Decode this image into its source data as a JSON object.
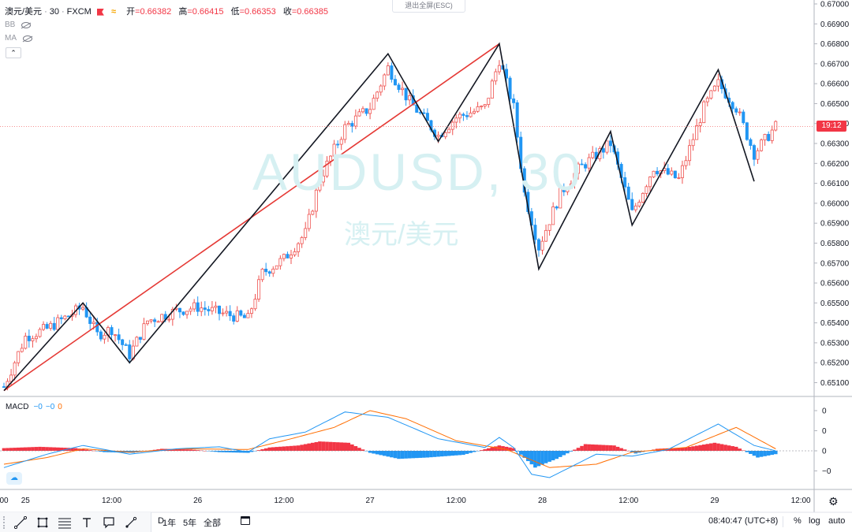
{
  "header": {
    "symbol": "澳元/美元",
    "interval": "30",
    "exchange": "FXCM",
    "ohlc": [
      {
        "label": "开",
        "value": "=0.66382"
      },
      {
        "label": "高",
        "value": "=0.66415"
      },
      {
        "label": "低",
        "value": "=0.66353"
      },
      {
        "label": "收",
        "value": "=0.66385"
      }
    ],
    "indicators": [
      "BB",
      "MA"
    ],
    "exit_fullscreen": "退出全屏(ESC)"
  },
  "watermark": {
    "ticker": "AUDUSD, 30",
    "name": "澳元/美元"
  },
  "price_tag": "19:12",
  "macd_legend": {
    "name": "MACD",
    "v1": "−0",
    "v2": "−0",
    "v3": "0"
  },
  "bottom_bar": {
    "ranges": [
      "D",
      "1年",
      "5年",
      "全部"
    ],
    "time": "08:40:47 (UTC+8)",
    "percent": "%",
    "log": "log",
    "auto": "auto"
  },
  "colors": {
    "up": "#ef5350",
    "down": "#2196f3",
    "macd_line": "#2196f3",
    "signal_line": "#ff6d00",
    "hist_pos": "#f23645",
    "hist_neg": "#2196f3",
    "zigzag": "#131722",
    "trend": "#e53935",
    "watermark": "#d6f0f2"
  },
  "chart_data": [
    {
      "type": "candlestick",
      "title": "澳元/美元 · 30 · FXCM",
      "ylim": [
        0.6505,
        0.67
      ],
      "y_ticks": [
        "0.67000",
        "0.66900",
        "0.66800",
        "0.66700",
        "0.66600",
        "0.66500",
        "0.66400",
        "0.66300",
        "0.66200",
        "0.66100",
        "0.66000",
        "0.65900",
        "0.65800",
        "0.65700",
        "0.65600",
        "0.65500",
        "0.65400",
        "0.65300",
        "0.65200",
        "0.65100"
      ],
      "x_ticks": [
        {
          "label": "00",
          "x": 0
        },
        {
          "label": "25",
          "x": 6
        },
        {
          "label": "12:00",
          "x": 30
        },
        {
          "label": "26",
          "x": 54
        },
        {
          "label": "12:00",
          "x": 78
        },
        {
          "label": "27",
          "x": 102
        },
        {
          "label": "12:00",
          "x": 126
        },
        {
          "label": "28",
          "x": 150
        },
        {
          "label": "12:00",
          "x": 174
        },
        {
          "label": "29",
          "x": 198
        },
        {
          "label": "12:00",
          "x": 222
        }
      ],
      "zigzag": [
        {
          "x": 0,
          "y": 0.6506
        },
        {
          "x": 22,
          "y": 0.655
        },
        {
          "x": 35,
          "y": 0.652
        },
        {
          "x": 107,
          "y": 0.6675
        },
        {
          "x": 121,
          "y": 0.6631
        },
        {
          "x": 138,
          "y": 0.668
        },
        {
          "x": 149,
          "y": 0.6567
        },
        {
          "x": 169,
          "y": 0.6636
        },
        {
          "x": 175,
          "y": 0.6589
        },
        {
          "x": 199,
          "y": 0.6667
        },
        {
          "x": 209,
          "y": 0.6611
        }
      ],
      "trendline": [
        {
          "x": 0,
          "y": 0.6506
        },
        {
          "x": 138,
          "y": 0.668
        }
      ],
      "last_close": 0.66385,
      "ohlc_path": [
        {
          "x": 0,
          "y": 0.6508
        },
        {
          "x": 6,
          "y": 0.6533
        },
        {
          "x": 12,
          "y": 0.6537
        },
        {
          "x": 22,
          "y": 0.6548
        },
        {
          "x": 26,
          "y": 0.6534
        },
        {
          "x": 30,
          "y": 0.6537
        },
        {
          "x": 35,
          "y": 0.6524
        },
        {
          "x": 40,
          "y": 0.6541
        },
        {
          "x": 48,
          "y": 0.6546
        },
        {
          "x": 54,
          "y": 0.6548
        },
        {
          "x": 60,
          "y": 0.6545
        },
        {
          "x": 68,
          "y": 0.6542
        },
        {
          "x": 72,
          "y": 0.6565
        },
        {
          "x": 78,
          "y": 0.6572
        },
        {
          "x": 84,
          "y": 0.6585
        },
        {
          "x": 88,
          "y": 0.6612
        },
        {
          "x": 95,
          "y": 0.6638
        },
        {
          "x": 102,
          "y": 0.6648
        },
        {
          "x": 107,
          "y": 0.6668
        },
        {
          "x": 113,
          "y": 0.6651
        },
        {
          "x": 121,
          "y": 0.6634
        },
        {
          "x": 126,
          "y": 0.6643
        },
        {
          "x": 134,
          "y": 0.6648
        },
        {
          "x": 138,
          "y": 0.6672
        },
        {
          "x": 142,
          "y": 0.6648
        },
        {
          "x": 145,
          "y": 0.6605
        },
        {
          "x": 149,
          "y": 0.6578
        },
        {
          "x": 155,
          "y": 0.6605
        },
        {
          "x": 160,
          "y": 0.6617
        },
        {
          "x": 169,
          "y": 0.663
        },
        {
          "x": 175,
          "y": 0.6595
        },
        {
          "x": 181,
          "y": 0.6618
        },
        {
          "x": 188,
          "y": 0.6612
        },
        {
          "x": 195,
          "y": 0.6648
        },
        {
          "x": 199,
          "y": 0.666
        },
        {
          "x": 204,
          "y": 0.6648
        },
        {
          "x": 209,
          "y": 0.6625
        },
        {
          "x": 215,
          "y": 0.66385
        }
      ]
    },
    {
      "type": "line",
      "title": "MACD",
      "y_ticks": [
        {
          "label": "0",
          "v": 0.0006
        },
        {
          "label": "0",
          "v": 0.0003
        },
        {
          "label": "0",
          "v": 0
        },
        {
          "label": "−0",
          "v": -0.0003
        }
      ],
      "ylim": [
        -0.0005,
        0.0006
      ],
      "macd": [
        {
          "x": 0,
          "y": -0.00025
        },
        {
          "x": 12,
          "y": -5e-05
        },
        {
          "x": 22,
          "y": 8e-05
        },
        {
          "x": 35,
          "y": -5e-05
        },
        {
          "x": 48,
          "y": 3e-05
        },
        {
          "x": 60,
          "y": 6e-05
        },
        {
          "x": 68,
          "y": -2e-05
        },
        {
          "x": 74,
          "y": 0.00018
        },
        {
          "x": 84,
          "y": 0.00028
        },
        {
          "x": 95,
          "y": 0.00058
        },
        {
          "x": 107,
          "y": 0.0005
        },
        {
          "x": 121,
          "y": 0.00018
        },
        {
          "x": 134,
          "y": 5e-05
        },
        {
          "x": 138,
          "y": 0.0002
        },
        {
          "x": 142,
          "y": 5e-05
        },
        {
          "x": 147,
          "y": -0.00035
        },
        {
          "x": 152,
          "y": -0.0004
        },
        {
          "x": 165,
          "y": -5e-05
        },
        {
          "x": 175,
          "y": -8e-05
        },
        {
          "x": 185,
          "y": 2e-05
        },
        {
          "x": 199,
          "y": 0.0004
        },
        {
          "x": 209,
          "y": 8e-05
        },
        {
          "x": 215,
          "y": 0.0
        }
      ],
      "signal": [
        {
          "x": 0,
          "y": -0.0002
        },
        {
          "x": 12,
          "y": -0.0001
        },
        {
          "x": 22,
          "y": 3e-05
        },
        {
          "x": 35,
          "y": -2e-05
        },
        {
          "x": 50,
          "y": 3e-05
        },
        {
          "x": 68,
          "y": 2e-05
        },
        {
          "x": 80,
          "y": 0.00018
        },
        {
          "x": 92,
          "y": 0.00035
        },
        {
          "x": 102,
          "y": 0.0006
        },
        {
          "x": 112,
          "y": 0.00048
        },
        {
          "x": 126,
          "y": 0.00015
        },
        {
          "x": 140,
          "y": 2e-05
        },
        {
          "x": 152,
          "y": -0.00025
        },
        {
          "x": 165,
          "y": -0.0002
        },
        {
          "x": 175,
          "y": -2e-05
        },
        {
          "x": 190,
          "y": 5e-05
        },
        {
          "x": 204,
          "y": 0.00035
        },
        {
          "x": 215,
          "y": 3e-05
        }
      ],
      "histogram": [
        {
          "x": 0,
          "y": 4e-05
        },
        {
          "x": 10,
          "y": 6e-05
        },
        {
          "x": 20,
          "y": 4e-05
        },
        {
          "x": 28,
          "y": -2e-05
        },
        {
          "x": 36,
          "y": -3e-05
        },
        {
          "x": 44,
          "y": 3e-05
        },
        {
          "x": 52,
          "y": 2e-05
        },
        {
          "x": 60,
          "y": -2e-05
        },
        {
          "x": 68,
          "y": -3e-05
        },
        {
          "x": 74,
          "y": 5e-05
        },
        {
          "x": 82,
          "y": 8e-05
        },
        {
          "x": 88,
          "y": 0.00014
        },
        {
          "x": 96,
          "y": 0.00012
        },
        {
          "x": 102,
          "y": -3e-05
        },
        {
          "x": 110,
          "y": -0.00012
        },
        {
          "x": 118,
          "y": -0.0001
        },
        {
          "x": 128,
          "y": -6e-05
        },
        {
          "x": 138,
          "y": 8e-05
        },
        {
          "x": 142,
          "y": 4e-05
        },
        {
          "x": 148,
          "y": -0.00025
        },
        {
          "x": 154,
          "y": -0.00012
        },
        {
          "x": 162,
          "y": 0.0001
        },
        {
          "x": 170,
          "y": 8e-05
        },
        {
          "x": 176,
          "y": -4e-05
        },
        {
          "x": 182,
          "y": 3e-05
        },
        {
          "x": 190,
          "y": 5e-05
        },
        {
          "x": 198,
          "y": 0.00012
        },
        {
          "x": 204,
          "y": 6e-05
        },
        {
          "x": 210,
          "y": -0.0001
        },
        {
          "x": 215,
          "y": -5e-05
        }
      ]
    }
  ]
}
